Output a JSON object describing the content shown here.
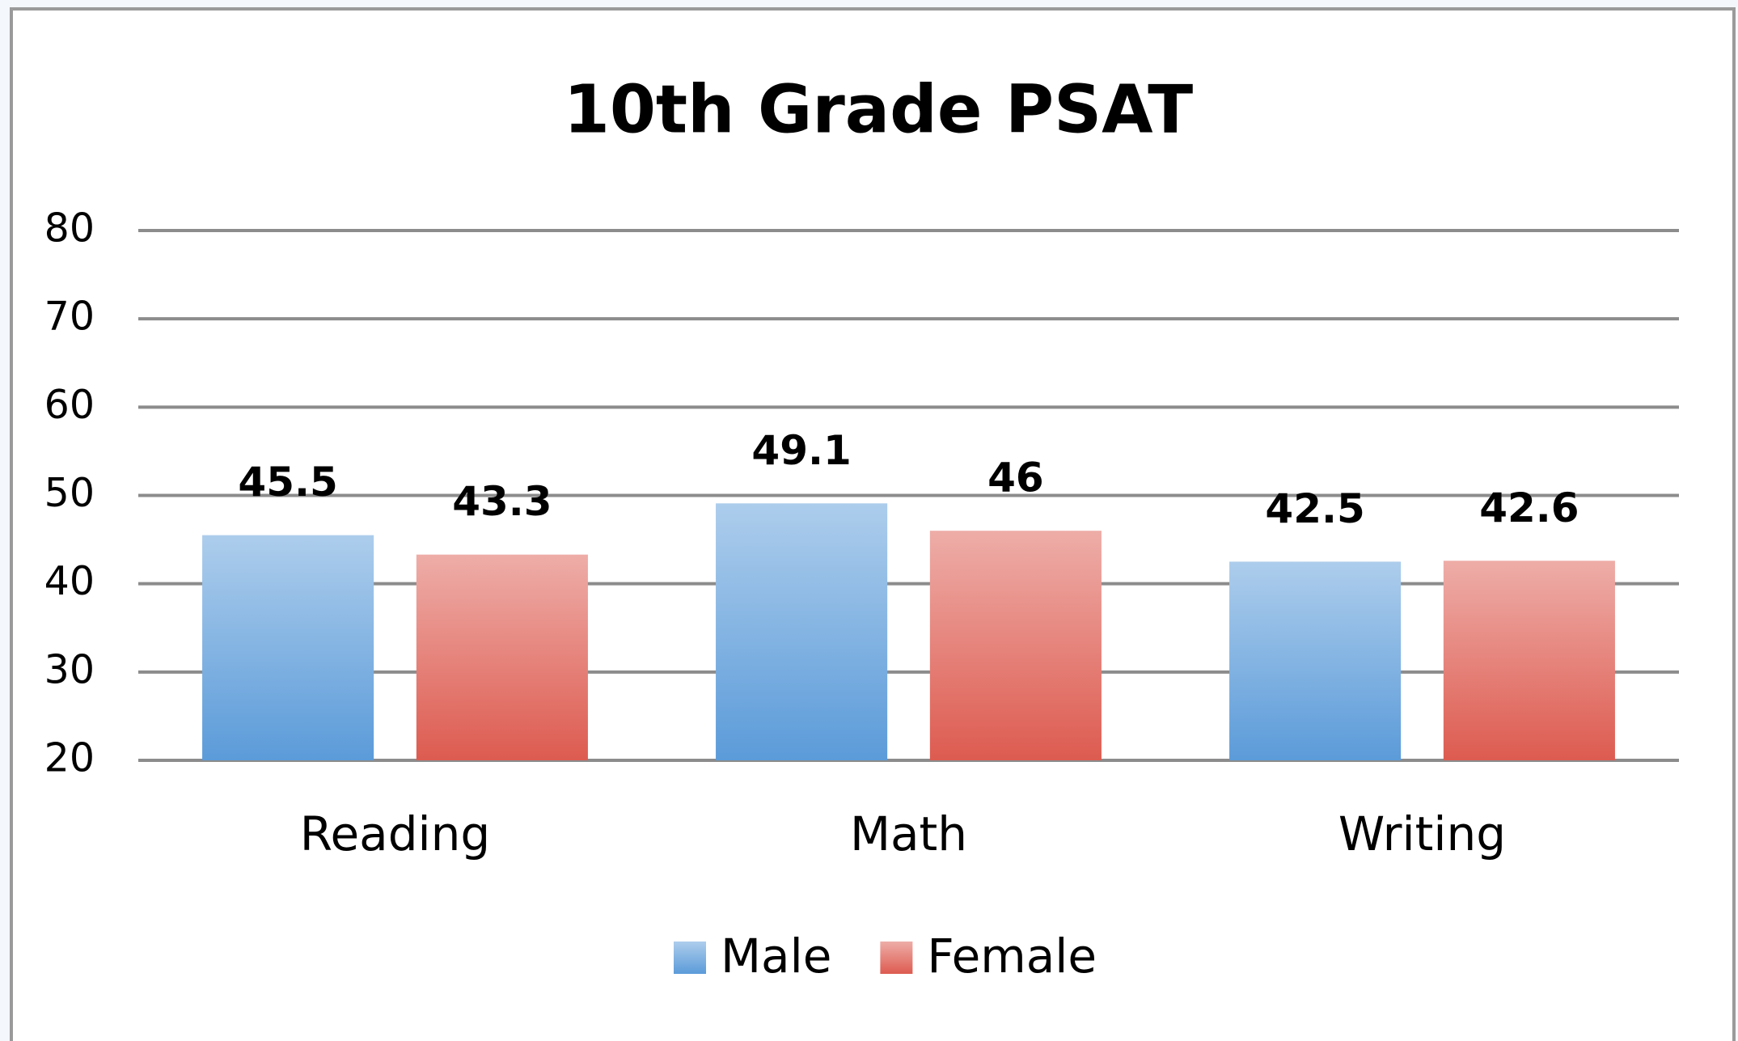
{
  "chart_data": {
    "type": "bar",
    "title": "10th Grade PSAT",
    "categories": [
      "Reading",
      "Math",
      "Writing"
    ],
    "series": [
      {
        "name": "Male",
        "color": "#5b9bd9",
        "values": [
          45.5,
          49.1,
          42.5
        ]
      },
      {
        "name": "Female",
        "color": "#dd5b50",
        "values": [
          43.3,
          46,
          42.6
        ]
      }
    ],
    "ylim": [
      20,
      80
    ],
    "yticks": [
      20,
      30,
      40,
      50,
      60,
      70,
      80
    ],
    "grid": true,
    "legend": "bottom"
  }
}
